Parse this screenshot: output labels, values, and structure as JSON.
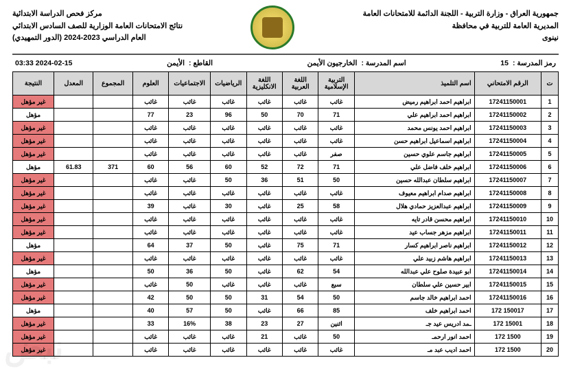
{
  "header": {
    "right_l1": "جمهورية العراق - وزارة التربية - اللجنة الدائمة للامتحانات العامة",
    "right_l2": "المديرية العامة للتربية في محافظة",
    "right_l3": "نينوى",
    "left_l1": "مركز فحص الدراسة الابتدائية",
    "left_l2": "نتائج الامتحانات العامة الوزارية للصف السادس الابتدائي",
    "left_l3": "العام الدراسي 2023-2024 (الدور التمهيدي)"
  },
  "meta": {
    "school_code_lbl": "رمز المدرسة :",
    "school_code": "15",
    "school_name_lbl": "اسم المدرسة :",
    "school_name": "الخارجيون الأيمن",
    "sector_lbl": "القاطع :",
    "sector": "الأيمن",
    "datetime": "2024-02-15 03:33"
  },
  "columns": {
    "idx": "ت",
    "exam": "الرقم الامتحاني",
    "name": "اسم التلميذ",
    "s1a": "التربية",
    "s1b": "الإسلامية",
    "s2a": "اللغة",
    "s2b": "العربية",
    "s3a": "اللغة",
    "s3b": "الانكليزية",
    "s4": "الرياضيات",
    "s5": "الاجتماعيات",
    "s6": "العلوم",
    "sum": "المجموع",
    "avg": "المعدل",
    "res": "النتيجة"
  },
  "result_labels": {
    "pass": "مؤهل",
    "fail": "غير مؤهل"
  },
  "absent": "غائب",
  "rows": [
    {
      "i": 1,
      "ex": "17241150001",
      "n": "ابراهيم احمد ابراهيم رميض",
      "s": [
        "غائب",
        "غائب",
        "غائب",
        "غائب",
        "غائب",
        "غائب"
      ],
      "sum": "",
      "avg": "",
      "r": "fail"
    },
    {
      "i": 2,
      "ex": "17241150002",
      "n": "ابراهيم احمد ابراهيم علي",
      "s": [
        "71",
        "70",
        "50",
        "96",
        "23",
        "77"
      ],
      "sum": "",
      "avg": "",
      "r": "pass"
    },
    {
      "i": 3,
      "ex": "17241150003",
      "n": "ابراهيم احمد يونس محمد",
      "s": [
        "غائب",
        "غائب",
        "غائب",
        "غائب",
        "غائب",
        "غائب"
      ],
      "sum": "",
      "avg": "",
      "r": "fail"
    },
    {
      "i": 4,
      "ex": "17241150004",
      "n": "ابراهيم اسماعيل ابراهيم حسن",
      "s": [
        "غائب",
        "غائب",
        "غائب",
        "غائب",
        "غائب",
        "غائب"
      ],
      "sum": "",
      "avg": "",
      "r": "fail"
    },
    {
      "i": 5,
      "ex": "17241150005",
      "n": "ابراهيم جاسم علوي حسين",
      "s": [
        "صفر",
        "غائب",
        "غائب",
        "غائب",
        "غائب",
        "غائب"
      ],
      "sum": "",
      "avg": "",
      "r": "fail"
    },
    {
      "i": 6,
      "ex": "17241150006",
      "n": "ابراهيم خلف فاضل علي",
      "s": [
        "71",
        "72",
        "52",
        "60",
        "56",
        "60"
      ],
      "sum": "371",
      "avg": "61.83",
      "r": "pass"
    },
    {
      "i": 7,
      "ex": "17241150007",
      "n": "ابراهيم سلطان عبدالله حسين",
      "s": [
        "50",
        "51",
        "36",
        "50",
        "غائب",
        "غائب"
      ],
      "sum": "",
      "avg": "",
      "r": "fail"
    },
    {
      "i": 8,
      "ex": "17241150008",
      "n": "ابراهيم صدام ابراهيم معيوف",
      "s": [
        "غائب",
        "غائب",
        "غائب",
        "غائب",
        "غائب",
        "غائب"
      ],
      "sum": "",
      "avg": "",
      "r": "fail"
    },
    {
      "i": 9,
      "ex": "17241150009",
      "n": "ابراهيم عبدالعزيز حمادي هلال",
      "s": [
        "58",
        "25",
        "غائب",
        "30",
        "غائب",
        "39"
      ],
      "sum": "",
      "avg": "",
      "r": "fail"
    },
    {
      "i": 10,
      "ex": "17241150010",
      "n": "ابراهيم محسن قادر تايه",
      "s": [
        "غائب",
        "غائب",
        "غائب",
        "غائب",
        "غائب",
        "غائب"
      ],
      "sum": "",
      "avg": "",
      "r": "fail"
    },
    {
      "i": 11,
      "ex": "17241150011",
      "n": "ابراهيم مزهر جساب عيد",
      "s": [
        "غائب",
        "غائب",
        "غائب",
        "غائب",
        "غائب",
        "غائب"
      ],
      "sum": "",
      "avg": "",
      "r": "fail"
    },
    {
      "i": 12,
      "ex": "17241150012",
      "n": "ابراهيم ناصر ابراهيم كسار",
      "s": [
        "71",
        "75",
        "غائب",
        "50",
        "37",
        "64"
      ],
      "sum": "",
      "avg": "",
      "r": "pass"
    },
    {
      "i": 13,
      "ex": "17241150013",
      "n": "ابراهيم هاشم زبيد علي",
      "s": [
        "غائب",
        "غائب",
        "غائب",
        "غائب",
        "غائب",
        "غائب"
      ],
      "sum": "",
      "avg": "",
      "r": "fail"
    },
    {
      "i": 14,
      "ex": "17241150014",
      "n": "ابو عبيدة صلوح علي عبدالله",
      "s": [
        "54",
        "62",
        "غائب",
        "50",
        "36",
        "50"
      ],
      "sum": "",
      "avg": "",
      "r": "pass"
    },
    {
      "i": 15,
      "ex": "17241150015",
      "n": "ابير حسين علي سلطان",
      "s": [
        "سبع",
        "غائب",
        "غائب",
        "غائب",
        "50",
        "غائب"
      ],
      "sum": "",
      "avg": "",
      "r": "fail"
    },
    {
      "i": 16,
      "ex": "17241150016",
      "n": "احمد ابراهيم خالد جاسم",
      "s": [
        "50",
        "54",
        "31",
        "50",
        "50",
        "42"
      ],
      "sum": "",
      "avg": "",
      "r": "fail"
    },
    {
      "i": 17,
      "ex": "150017   172",
      "n": "احمد ابراهيم خلف",
      "s": [
        "85",
        "66",
        "غائب",
        "50",
        "57",
        "40"
      ],
      "sum": "",
      "avg": "",
      "r": "pass"
    },
    {
      "i": 18,
      "ex": "15001   172",
      "n": "ـمد ادريس عيد جـ",
      "s": [
        "اثنين",
        "27",
        "23",
        "38",
        "16%",
        "33"
      ],
      "sum": "",
      "avg": "",
      "r": "fail"
    },
    {
      "i": 19,
      "ex": "1500   172",
      "n": "احمد انور ارحمـ",
      "s": [
        "50",
        "غائب",
        "21",
        "غائب",
        "غائب",
        "غائب"
      ],
      "sum": "",
      "avg": "",
      "r": "fail"
    },
    {
      "i": 20,
      "ex": "1500   172",
      "n": "احمد اديب عبد مـ",
      "s": [
        "غائب",
        "غائب",
        "غائب",
        "غائب",
        "غائب",
        "غائب"
      ],
      "sum": "",
      "avg": "",
      "r": "fail"
    }
  ],
  "colors": {
    "header_bg": "#d7d7d7",
    "fail_bg": "#e67a7a",
    "border": "#000000"
  }
}
